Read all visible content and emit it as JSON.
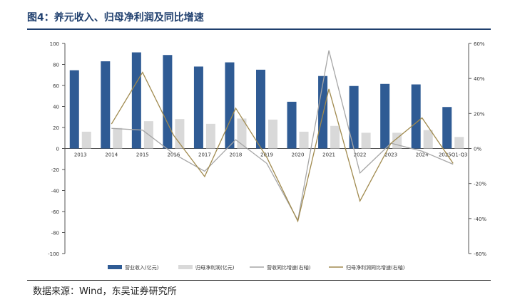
{
  "title": "图4：养元收入、归母净利润及同比增速",
  "source": "数据来源：Wind，东吴证券研究所",
  "colors": {
    "revenue_bar": "#2f5b94",
    "profit_bar": "#d9d9d9",
    "revenue_growth_line": "#a6a6a6",
    "profit_growth_line": "#a08a4e",
    "axis": "#555555",
    "title": "#1f3f6e"
  },
  "chart_data": {
    "type": "bar",
    "categories": [
      "2013",
      "2014",
      "2015",
      "2016",
      "2017",
      "2018",
      "2019",
      "2020",
      "2021",
      "2022",
      "2023",
      "2024",
      "2025Q1-Q3"
    ],
    "series": [
      {
        "name": "营业收入(亿元)",
        "kind": "bar",
        "axis": "left",
        "values": [
          74.5,
          83,
          91.5,
          89,
          78,
          82,
          75,
          44.5,
          69,
          59.5,
          61.5,
          61,
          39.5
        ]
      },
      {
        "name": "归母净利润(亿元)",
        "kind": "bar",
        "axis": "left",
        "values": [
          16,
          19.5,
          26,
          28,
          23.5,
          28.5,
          27.5,
          16,
          21.5,
          15,
          15,
          17.5,
          11
        ]
      },
      {
        "name": "营收同比增速(右轴)",
        "kind": "line",
        "axis": "right",
        "values": [
          null,
          11.5,
          10.5,
          -3,
          -13,
          5,
          -8.5,
          -41,
          56,
          -14,
          3,
          -1.5,
          -9
        ]
      },
      {
        "name": "归母净利润同比增速(右轴)",
        "kind": "line",
        "axis": "right",
        "values": [
          null,
          14,
          43.5,
          7.5,
          -16,
          23,
          -5,
          -41.5,
          34,
          -30,
          3,
          17.5,
          -8.5
        ]
      }
    ],
    "yaxis_left": {
      "ylim": [
        -100,
        100
      ],
      "ticks": [
        "100",
        "80",
        "60",
        "40",
        "20",
        "0",
        "-20",
        "-40",
        "-60",
        "-80",
        "-100"
      ]
    },
    "yaxis_right": {
      "ylim": [
        -60,
        60
      ],
      "ticks": [
        "60%",
        "40%",
        "20%",
        "0%",
        "-20%",
        "-40%",
        "-60%"
      ]
    },
    "legend_position": "bottom",
    "grid": false
  }
}
